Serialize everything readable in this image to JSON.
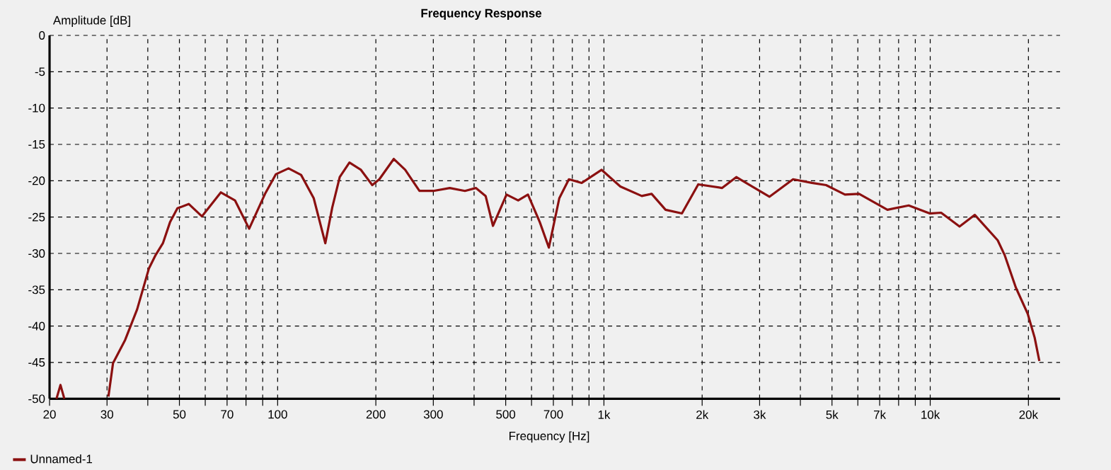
{
  "chart_data": {
    "type": "line",
    "title": "Frequency Response",
    "xlabel": "Frequency [Hz]",
    "ylabel": "Amplitude [dB]",
    "log": "x",
    "xlim": [
      20,
      25000
    ],
    "ylim": [
      -50,
      0
    ],
    "xticks": [
      20,
      30,
      {
        "value": 40,
        "label": null
      },
      50,
      {
        "value": 60,
        "label": null
      },
      70,
      {
        "value": 80,
        "label": null
      },
      {
        "value": 90,
        "label": null
      },
      100,
      200,
      300,
      {
        "value": 400,
        "label": null
      },
      500,
      {
        "value": 600,
        "label": null
      },
      700,
      {
        "value": 800,
        "label": null
      },
      {
        "value": 900,
        "label": null
      },
      {
        "value": 1000,
        "label": "1k"
      },
      {
        "value": 2000,
        "label": "2k"
      },
      {
        "value": 3000,
        "label": "3k"
      },
      {
        "value": 4000,
        "label": null
      },
      {
        "value": 5000,
        "label": "5k"
      },
      {
        "value": 6000,
        "label": null
      },
      {
        "value": 7000,
        "label": "7k"
      },
      {
        "value": 8000,
        "label": null
      },
      {
        "value": 9000,
        "label": null
      },
      {
        "value": 10000,
        "label": "10k"
      },
      {
        "value": 20000,
        "label": "20k"
      }
    ],
    "yticks": [
      0,
      -5,
      -10,
      -15,
      -20,
      -25,
      -30,
      -35,
      -40,
      -45,
      -50
    ],
    "grid": true,
    "legend": "bottom left",
    "marker": "none",
    "line_style": "solid",
    "series": [
      {
        "name": "Unnamed-1",
        "color": "#8b1010",
        "x": [
          21,
          21.6,
          22.2,
          26,
          30.3,
          31.3,
          34.1,
          37.1,
          40.3,
          42.3,
          44.5,
          46.8,
          49.3,
          53.4,
          58.6,
          67,
          74,
          81.8,
          91.5,
          98.8,
          108,
          118,
          129,
          140,
          147,
          155,
          166,
          180,
          195,
          205,
          227,
          246,
          272,
          300,
          337,
          375,
          405,
          434,
          457,
          503,
          546,
          585,
          636,
          678,
          730,
          781,
          855,
          984,
          1123,
          1306,
          1400,
          1545,
          1734,
          1946,
          2303,
          2545,
          3215,
          3800,
          4338,
          4795,
          5479,
          6055,
          7395,
          8592,
          9964,
          10800,
          12300,
          13700,
          16100,
          16900,
          18300,
          19900,
          20900,
          21600
        ],
        "values": [
          -50,
          -48.1,
          -50,
          null,
          -49.7,
          -45.1,
          -41.9,
          -37.7,
          -32.1,
          -30.2,
          -28.6,
          -25.7,
          -23.8,
          -23.2,
          -24.9,
          -21.6,
          -22.7,
          -26.6,
          -21.8,
          -19.1,
          -18.3,
          -19.2,
          -22.4,
          -28.6,
          -23.7,
          -19.5,
          -17.5,
          -18.5,
          -20.6,
          -19.8,
          -17.0,
          -18.5,
          -21.4,
          -21.4,
          -21.0,
          -21.4,
          -21.0,
          -22.1,
          -26.2,
          -21.9,
          -22.7,
          -21.9,
          -25.7,
          -29.2,
          -22.4,
          -19.8,
          -20.3,
          -18.5,
          -20.8,
          -22.1,
          -21.8,
          -24.0,
          -24.5,
          -20.5,
          -21.0,
          -19.5,
          -22.2,
          -19.8,
          -20.3,
          -20.6,
          -21.9,
          -21.8,
          -24.0,
          -23.4,
          -24.5,
          -24.4,
          -26.3,
          -24.7,
          -28.2,
          -30.2,
          -34.7,
          -38.3,
          -41.6,
          -44.8
        ]
      }
    ]
  }
}
